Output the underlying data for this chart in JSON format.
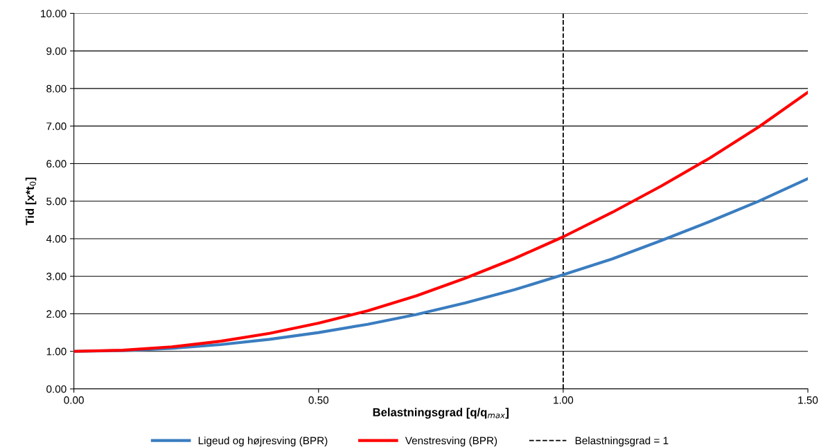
{
  "chart_data": {
    "type": "line",
    "xlabel": "Belastningsgrad [q/q$_{max}$]",
    "ylabel": "Tid [x*t$_{0}$]",
    "x": [
      0,
      0.1,
      0.2,
      0.3,
      0.4,
      0.5,
      0.6,
      0.7,
      0.8,
      0.9,
      1.0,
      1.1,
      1.2,
      1.3,
      1.4,
      1.5
    ],
    "series": [
      {
        "name": "Ligeud og højresving (BPR)",
        "color": "#3a7dc0",
        "values": [
          1.0,
          1.02,
          1.08,
          1.18,
          1.32,
          1.5,
          1.72,
          1.98,
          2.29,
          2.64,
          3.04,
          3.46,
          3.95,
          4.46,
          5.0,
          5.6
        ]
      },
      {
        "name": "Venstresving (BPR)",
        "color": "#ff0000",
        "values": [
          1.0,
          1.03,
          1.12,
          1.27,
          1.48,
          1.75,
          2.08,
          2.48,
          2.95,
          3.47,
          4.05,
          4.7,
          5.4,
          6.15,
          6.98,
          7.9
        ]
      }
    ],
    "ref_lines": [
      {
        "axis": "x",
        "value": 1,
        "label": "Belastningsgrad = 1",
        "color": "#000000",
        "line_style": "dashed"
      }
    ],
    "xlim": [
      0,
      1.5
    ],
    "xticks": [
      {
        "value": 0,
        "label": "0.00"
      },
      {
        "value": 0.5,
        "label": "0.50"
      },
      {
        "value": 1,
        "label": "1.00"
      },
      {
        "value": 1.5,
        "label": "1.50"
      }
    ],
    "ylim": [
      0,
      10
    ],
    "yticks": [
      {
        "value": 0,
        "label": "0.00"
      },
      {
        "value": 1,
        "label": "1.00"
      },
      {
        "value": 2,
        "label": "2.00"
      },
      {
        "value": 3,
        "label": "3.00"
      },
      {
        "value": 4,
        "label": "4.00"
      },
      {
        "value": 5,
        "label": "5.00"
      },
      {
        "value": 6,
        "label": "6.00"
      },
      {
        "value": 7,
        "label": "7.00"
      },
      {
        "value": 8,
        "label": "8.00"
      },
      {
        "value": 9,
        "label": "9.00"
      },
      {
        "value": 10,
        "label": "10.00"
      }
    ],
    "grid": "y",
    "legend": "bottom",
    "marker": "none",
    "line_style": "solid"
  }
}
